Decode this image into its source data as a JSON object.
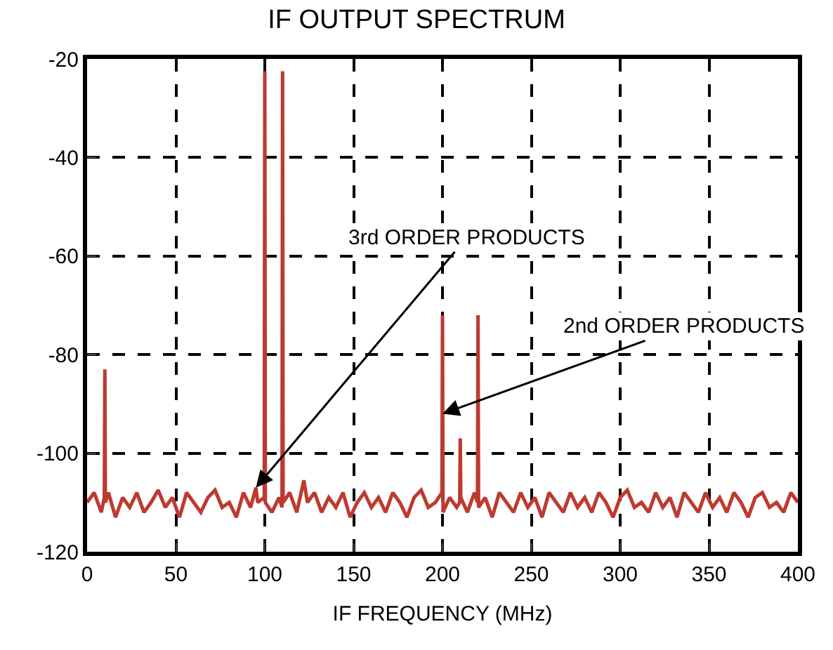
{
  "chart_data": {
    "type": "line",
    "title": "IF OUTPUT SPECTRUM",
    "xlabel": "IF FREQUENCY (MHz)",
    "xlim": [
      0,
      400
    ],
    "xticks": [
      0,
      50,
      100,
      150,
      200,
      250,
      300,
      350,
      400
    ],
    "ylim": [
      -120,
      -20
    ],
    "yticks": [
      -120,
      -100,
      -80,
      -60,
      -40,
      -20
    ],
    "grid": true,
    "marker": "none",
    "line_style": "solid",
    "series": [
      {
        "color": "#bd3a30",
        "x": [
          0,
          4,
          8,
          9.7,
          10,
          10.3,
          12,
          16,
          20,
          24,
          28,
          32,
          36,
          40,
          44,
          48,
          52,
          56,
          60,
          64,
          68,
          72,
          76,
          80,
          84,
          88,
          92,
          95,
          96,
          99.7,
          100,
          100.3,
          104,
          108,
          109.7,
          110,
          110.3,
          114,
          118,
          122,
          124,
          128,
          132,
          136,
          140,
          144,
          148,
          152,
          156,
          160,
          164,
          168,
          172,
          176,
          180,
          184,
          188,
          192,
          196,
          199.7,
          200,
          200.3,
          204,
          208,
          209.7,
          210,
          210.3,
          214,
          218,
          219.7,
          220,
          220.3,
          224,
          228,
          232,
          236,
          240,
          244,
          248,
          252,
          256,
          260,
          264,
          268,
          272,
          276,
          280,
          284,
          288,
          292,
          296,
          300,
          304,
          308,
          312,
          316,
          320,
          324,
          328,
          332,
          336,
          340,
          344,
          348,
          352,
          356,
          360,
          364,
          368,
          372,
          376,
          380,
          384,
          388,
          392,
          396,
          400
        ],
        "values": [
          -110,
          -108,
          -112,
          -109,
          -83,
          -110,
          -108,
          -113,
          -109,
          -111,
          -108,
          -112,
          -110,
          -107.5,
          -111,
          -109,
          -113,
          -108,
          -110,
          -112,
          -109,
          -107.5,
          -111,
          -110,
          -113,
          -108,
          -111,
          -107,
          -110,
          -109,
          -22.5,
          -110,
          -112,
          -109,
          -111,
          -22.5,
          -110,
          -108,
          -112,
          -105.5,
          -110,
          -108,
          -112,
          -109,
          -111,
          -108,
          -113,
          -110,
          -108,
          -111,
          -109,
          -112,
          -108,
          -110,
          -113,
          -109,
          -107.5,
          -111,
          -110,
          -108,
          -72,
          -112,
          -109,
          -111,
          -110,
          -97,
          -109,
          -112,
          -108,
          -110,
          -72,
          -111,
          -109,
          -113,
          -108,
          -110,
          -112,
          -108,
          -111,
          -109,
          -113,
          -108,
          -110,
          -112,
          -108,
          -111,
          -109,
          -112,
          -108,
          -110,
          -113,
          -109,
          -107.5,
          -111,
          -110,
          -112,
          -108,
          -111,
          -109,
          -113,
          -108,
          -110,
          -112,
          -108,
          -111,
          -109,
          -112,
          -108,
          -110,
          -113,
          -109,
          -108,
          -111,
          -110,
          -112,
          -108,
          -110
        ]
      }
    ],
    "annotations": [
      {
        "text": "3rd ORDER PRODUCTS",
        "x": 95,
        "y": -107
      },
      {
        "text": "2nd ORDER PRODUCTS",
        "x": 200,
        "y": -92
      }
    ]
  }
}
